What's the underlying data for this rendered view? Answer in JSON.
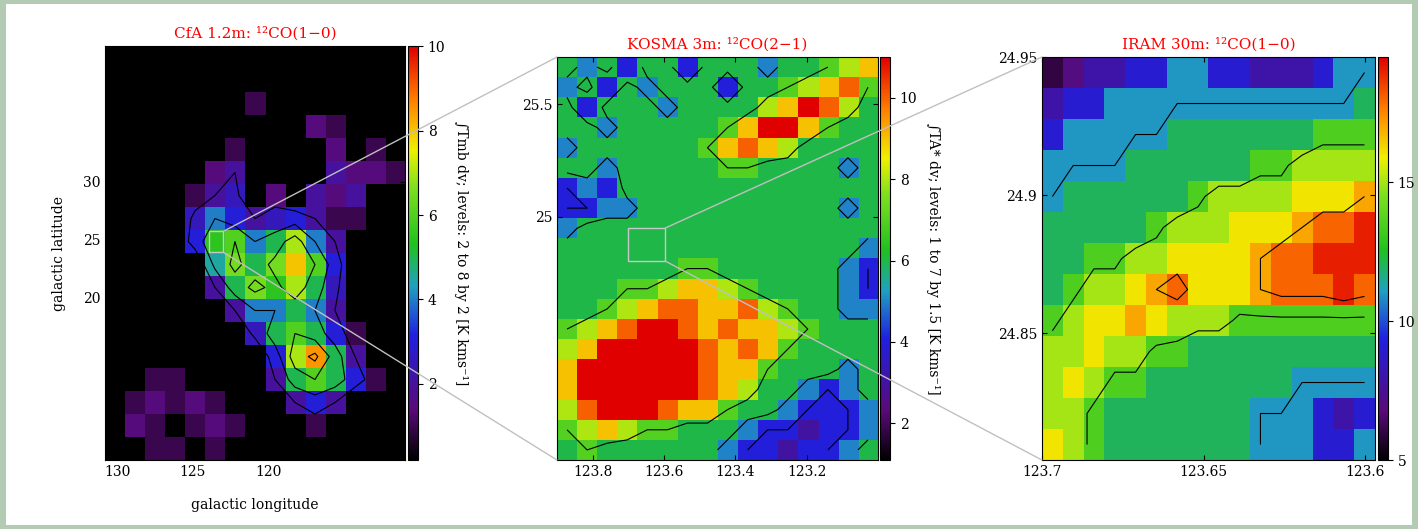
{
  "chart_data": [
    {
      "type": "heatmap",
      "title": "CfA 1.2m: ¹²CO(1−0)",
      "xlabel": "galactic longitude",
      "ylabel": "galactic latitude",
      "xlim": [
        130.8,
        111.0
      ],
      "ylim": [
        6.0,
        41.7
      ],
      "xticks": [
        130,
        125,
        120
      ],
      "yticks": [
        20,
        25,
        30
      ],
      "colorbar": {
        "label": "∫Tmb dv; levels: 2 to 8 by 2 [K kms⁻¹]",
        "range": [
          0.2,
          10
        ],
        "ticks": [
          2,
          4,
          6,
          8,
          10
        ]
      },
      "contour_levels": [
        2,
        4,
        6,
        8
      ],
      "z": [
        [
          0,
          0,
          0,
          0,
          0,
          0,
          0,
          0,
          0,
          0,
          0,
          0,
          0,
          0,
          0
        ],
        [
          0,
          0,
          0,
          0,
          0,
          0,
          0,
          0,
          0,
          0,
          0,
          0,
          0,
          0,
          0
        ],
        [
          0,
          0,
          0,
          0,
          0,
          0,
          0,
          1,
          0,
          0,
          0,
          0,
          0,
          0,
          0
        ],
        [
          0,
          0,
          0,
          0,
          0,
          0,
          0,
          0,
          0,
          0,
          1.5,
          1,
          0,
          0,
          0
        ],
        [
          0,
          0,
          0,
          0,
          0,
          0,
          1,
          0,
          0,
          0,
          0,
          1.5,
          0,
          1,
          0
        ],
        [
          0,
          0,
          0,
          0,
          0,
          1.5,
          2,
          0,
          0,
          0,
          0,
          2,
          1.5,
          1.5,
          1
        ],
        [
          0,
          0,
          0,
          0,
          1,
          2,
          2.5,
          0,
          1.5,
          0,
          2,
          1.5,
          2,
          0,
          0
        ],
        [
          0,
          0,
          0,
          0,
          2.5,
          4,
          3,
          2,
          2.5,
          3,
          2,
          1,
          1,
          0,
          0
        ],
        [
          0,
          0,
          0,
          0,
          3,
          5.5,
          6,
          4,
          5,
          7,
          4,
          2,
          0,
          0,
          0
        ],
        [
          0,
          0,
          0,
          0,
          0,
          4.5,
          6.5,
          5,
          6.5,
          8,
          6,
          3,
          0,
          0,
          0
        ],
        [
          0,
          0,
          0,
          0,
          0,
          2,
          5,
          6.5,
          5.5,
          7,
          5,
          2.5,
          0,
          0,
          0
        ],
        [
          0,
          0,
          0,
          0,
          0,
          0,
          2,
          4,
          4,
          5,
          4,
          2,
          0,
          0,
          0
        ],
        [
          0,
          0,
          0,
          0,
          0,
          0,
          0,
          2.5,
          5,
          6,
          5,
          3,
          1,
          0,
          0
        ],
        [
          0,
          0,
          0,
          0,
          0,
          0,
          0,
          0,
          3,
          7,
          8.5,
          5,
          2,
          0,
          0
        ],
        [
          0,
          0,
          1,
          1,
          0,
          0,
          0,
          0,
          2,
          5,
          6,
          5,
          3,
          1,
          0
        ],
        [
          0,
          1,
          1.5,
          1,
          1.5,
          1,
          0,
          0,
          0,
          2,
          3,
          2,
          0,
          0,
          0
        ],
        [
          0,
          1.5,
          1,
          0,
          1,
          1.5,
          1,
          0,
          0,
          0,
          1,
          0,
          0,
          0,
          0
        ],
        [
          0,
          0,
          1,
          1,
          0,
          1,
          0,
          0,
          0,
          0,
          0,
          0,
          0,
          0,
          0
        ]
      ]
    },
    {
      "type": "heatmap",
      "title": "KOSMA 3m: ¹²CO(2−1)",
      "xlim": [
        123.9,
        123.0
      ],
      "ylim": [
        23.92,
        25.71
      ],
      "xticks": [
        123.8,
        123.6,
        123.4,
        123.2
      ],
      "yticks": [
        25,
        25.5
      ],
      "colorbar": {
        "label": "∫TA* dv; levels: 1 to 7 by 1.5 [K kms⁻¹]",
        "range": [
          1.1,
          11
        ],
        "ticks": [
          2,
          4,
          6,
          8,
          10
        ]
      },
      "contour_levels": [
        1,
        2.5,
        4,
        5.5,
        7
      ],
      "z": [
        [
          6,
          5,
          6,
          4,
          6,
          6,
          4,
          6,
          6,
          6,
          5,
          6,
          6,
          7,
          8,
          9
        ],
        [
          5,
          6,
          4,
          6,
          5,
          6,
          6,
          6,
          4,
          6,
          6,
          7,
          8,
          9,
          10,
          7
        ],
        [
          6,
          4,
          6,
          6,
          6,
          5,
          6,
          6,
          6,
          6,
          8,
          9,
          11,
          10,
          8,
          6
        ],
        [
          6,
          6,
          5,
          6,
          6,
          6,
          6,
          6,
          7,
          9,
          11,
          11,
          9,
          7,
          6,
          6
        ],
        [
          5,
          6,
          6,
          6,
          6,
          6,
          6,
          7,
          9,
          10,
          9,
          8,
          6,
          6,
          6,
          6
        ],
        [
          6,
          6,
          5,
          6,
          6,
          6,
          6,
          6,
          7,
          7,
          6,
          6,
          6,
          6,
          5,
          6
        ],
        [
          4,
          5,
          4,
          6,
          6,
          6,
          6,
          6,
          6,
          6,
          6,
          6,
          6,
          6,
          6,
          6
        ],
        [
          4,
          4,
          5,
          5,
          6,
          6,
          6,
          6,
          6,
          6,
          6,
          6,
          6,
          6,
          5,
          6
        ],
        [
          5,
          6,
          6,
          6,
          6,
          6,
          6,
          6,
          6,
          6,
          6,
          6,
          6,
          6,
          6,
          6
        ],
        [
          6,
          6,
          6,
          6,
          6,
          6,
          6,
          6,
          6,
          6,
          6,
          6,
          6,
          6,
          6,
          5
        ],
        [
          6,
          6,
          6,
          6,
          6,
          6,
          7,
          7,
          6,
          6,
          6,
          6,
          6,
          6,
          5,
          4
        ],
        [
          6,
          6,
          6,
          7,
          7,
          8,
          9,
          9,
          8,
          7,
          6,
          6,
          6,
          6,
          5,
          4
        ],
        [
          6,
          6,
          7,
          8,
          9,
          10,
          10,
          9,
          9,
          10,
          8,
          7,
          6,
          6,
          5,
          5
        ],
        [
          7,
          8,
          9,
          10,
          11,
          11,
          10,
          9,
          10,
          9,
          9,
          8,
          7,
          6,
          6,
          6
        ],
        [
          8,
          9,
          11,
          11,
          11,
          11,
          11,
          10,
          9,
          10,
          9,
          7,
          6,
          6,
          6,
          6
        ],
        [
          9,
          11,
          11,
          11,
          11,
          11,
          11,
          10,
          9,
          9,
          7,
          6,
          6,
          6,
          5,
          6
        ],
        [
          9,
          11,
          11,
          11,
          11,
          11,
          11,
          10,
          9,
          8,
          6,
          6,
          5,
          4,
          5,
          6
        ],
        [
          8,
          10,
          11,
          11,
          11,
          10,
          9,
          9,
          7,
          6,
          6,
          5,
          4,
          4,
          4,
          5
        ],
        [
          7,
          8,
          9,
          8,
          7,
          7,
          6,
          6,
          6,
          5,
          4,
          4,
          3,
          4,
          4,
          5
        ],
        [
          6,
          7,
          6,
          6,
          6,
          6,
          6,
          6,
          5,
          4,
          4,
          3,
          4,
          4,
          5,
          6
        ]
      ]
    },
    {
      "type": "heatmap",
      "title": "IRAM 30m: ¹²CO(1−0)",
      "xlim": [
        123.7,
        123.597
      ],
      "ylim": [
        24.804,
        24.95
      ],
      "xticks": [
        123.7,
        123.65,
        123.6
      ],
      "yticks": [
        24.85,
        24.9,
        24.95
      ],
      "colorbar": {
        "range": [
          5,
          19.5
        ],
        "ticks": [
          5,
          10,
          15
        ]
      },
      "contour_levels": [
        11,
        14,
        17
      ],
      "z": [
        [
          6,
          7,
          8,
          8,
          9,
          9,
          11,
          11,
          9,
          9,
          8,
          8,
          8,
          9,
          11,
          11
        ],
        [
          8,
          9,
          9,
          11,
          11,
          11,
          11,
          11,
          11,
          11,
          11,
          11,
          11,
          11,
          11,
          12
        ],
        [
          9,
          11,
          11,
          11,
          11,
          11,
          12,
          12,
          12,
          12,
          12,
          12,
          12,
          13.5,
          13.5,
          13.5
        ],
        [
          11,
          11,
          11,
          11,
          12,
          12,
          12,
          12,
          12,
          12,
          13.5,
          13.5,
          15,
          15,
          15,
          15
        ],
        [
          11,
          12,
          12,
          12,
          12,
          12,
          12,
          13.5,
          15,
          15,
          15,
          15,
          16,
          16,
          16,
          17
        ],
        [
          12,
          12,
          12,
          12,
          12,
          13.5,
          15,
          15,
          15,
          16,
          16,
          16,
          17,
          18,
          18,
          19
        ],
        [
          12,
          12,
          13.5,
          13.5,
          15,
          15,
          16,
          16,
          16,
          16,
          17,
          18,
          18,
          19,
          19,
          19
        ],
        [
          12,
          13.5,
          15,
          15,
          16,
          17,
          18,
          16,
          16,
          16,
          17,
          18,
          18,
          18,
          19,
          18
        ],
        [
          13.5,
          15,
          16,
          16,
          17,
          16,
          15,
          15,
          15,
          13.5,
          13.5,
          13.5,
          13.5,
          13.5,
          13.5,
          13.5
        ],
        [
          15,
          15,
          16,
          15,
          15,
          13.5,
          13.5,
          12,
          12,
          12,
          12,
          12,
          12,
          12,
          12,
          12
        ],
        [
          15,
          16,
          15,
          13.5,
          13.5,
          12,
          12,
          12,
          12,
          12,
          12,
          12,
          11,
          11,
          11,
          11
        ],
        [
          15,
          15,
          13.5,
          12,
          12,
          12,
          12,
          12,
          12,
          12,
          11,
          11,
          11,
          9,
          8,
          9
        ],
        [
          16,
          15,
          13.5,
          12,
          12,
          12,
          12,
          12,
          12,
          12,
          11,
          11,
          11,
          9,
          9,
          11
        ]
      ]
    }
  ]
}
